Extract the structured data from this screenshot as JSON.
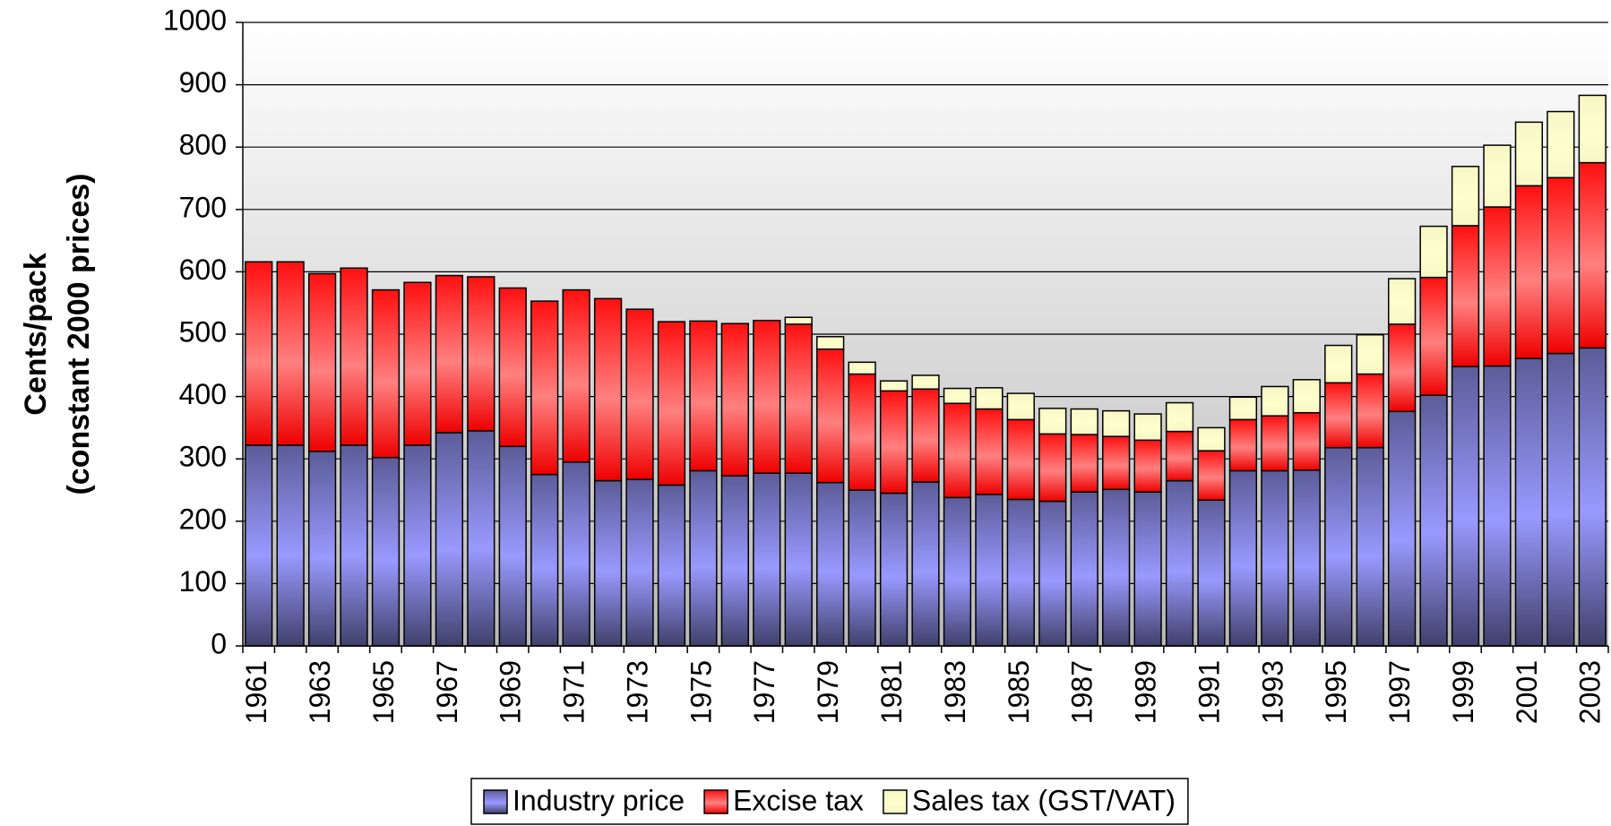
{
  "chart_data": {
    "type": "stacked_bar",
    "y_label": [
      "Cents/pack",
      "(constant 2000 prices)"
    ],
    "categories": [
      "1961",
      null,
      "1963",
      null,
      "1965",
      null,
      "1967",
      null,
      "1969",
      null,
      "1971",
      null,
      "1973",
      null,
      "1975",
      null,
      "1977",
      null,
      "1979",
      null,
      "1981",
      null,
      "1983",
      null,
      "1985",
      null,
      "1987",
      null,
      "1989",
      null,
      "1991",
      null,
      "1993",
      null,
      "1995",
      null,
      "1997",
      null,
      "1999",
      null,
      "2001",
      null,
      "2003"
    ],
    "series": [
      {
        "name": "Industry price",
        "color": "#9999ff",
        "values": [
          322,
          322,
          312,
          322,
          302,
          322,
          342,
          345,
          320,
          275,
          295,
          265,
          267,
          258,
          281,
          273,
          277,
          277,
          262,
          250,
          245,
          263,
          238,
          243,
          235,
          232,
          247,
          251,
          247,
          265,
          234,
          281,
          281,
          282,
          318,
          318,
          376,
          402,
          448,
          449,
          461,
          469,
          478
        ]
      },
      {
        "name": "Excise tax",
        "color": "#ff8080",
        "values": [
          294,
          294,
          285,
          284,
          269,
          261,
          252,
          247,
          254,
          278,
          276,
          292,
          273,
          262,
          240,
          244,
          245,
          239,
          214,
          186,
          164,
          149,
          151,
          137,
          128,
          108,
          92,
          85,
          83,
          79,
          79,
          82,
          88,
          92,
          104,
          118,
          140,
          189,
          226,
          255,
          277,
          282,
          297
        ]
      },
      {
        "name": "Sales tax (GST/VAT)",
        "color": "#ffffcc",
        "values": [
          0,
          0,
          0,
          0,
          0,
          0,
          0,
          0,
          0,
          0,
          0,
          0,
          0,
          0,
          0,
          0,
          0,
          11,
          20,
          19,
          16,
          22,
          24,
          34,
          42,
          41,
          41,
          41,
          42,
          46,
          37,
          36,
          47,
          53,
          60,
          63,
          73,
          82,
          95,
          99,
          102,
          106,
          108
        ]
      }
    ],
    "ylim": [
      0,
      1000
    ],
    "yticks": [
      0,
      100,
      200,
      300,
      400,
      500,
      600,
      700,
      800,
      900,
      1000
    ],
    "grid": true,
    "legend": "bottom"
  }
}
